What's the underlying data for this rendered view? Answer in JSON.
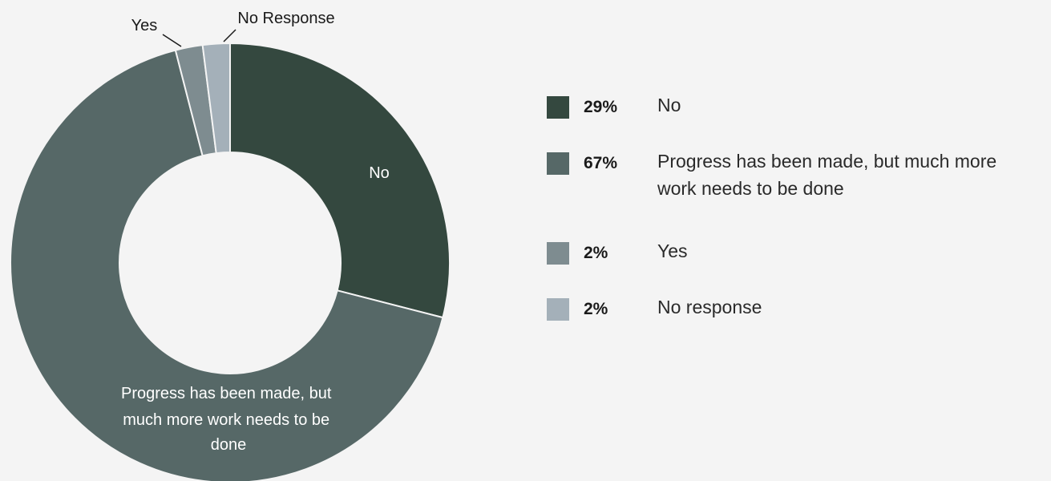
{
  "chart_data": {
    "type": "pie",
    "donut": true,
    "slices": [
      {
        "label": "No",
        "value": 29,
        "color": "#34483f",
        "legend_pct": "29%",
        "legend_text": "No"
      },
      {
        "label": "Progress has been made, but much more work needs to be done",
        "value": 67,
        "color": "#566867",
        "legend_pct": "67%",
        "legend_text": "Progress has been made, but much more work needs to be done"
      },
      {
        "label": "Yes",
        "value": 2,
        "color": "#7e8c90",
        "legend_pct": "2%",
        "legend_text": "Yes"
      },
      {
        "label": "No Response",
        "value": 2,
        "color": "#a4b0b9",
        "legend_pct": "2%",
        "legend_text": "No response"
      }
    ],
    "slice_labels": {
      "no": "No",
      "progress_lines": [
        "Progress has been made, but",
        "much more work needs to be",
        "done"
      ],
      "yes": "Yes",
      "no_response": "No Response"
    },
    "legend_placement": "right",
    "background": "#f4f4f4"
  }
}
